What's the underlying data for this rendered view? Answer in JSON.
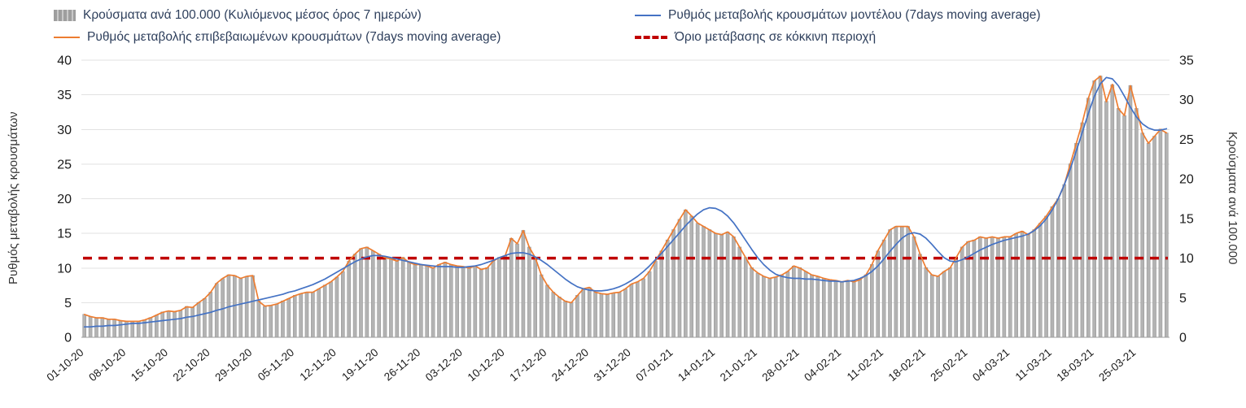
{
  "chart_data": {
    "type": "bar",
    "title": "",
    "legend_position": "top",
    "grid": true,
    "x": {
      "tick_labels": [
        "01-10-20",
        "08-10-20",
        "15-10-20",
        "22-10-20",
        "29-10-20",
        "05-11-20",
        "12-11-20",
        "19-11-20",
        "26-11-20",
        "03-12-20",
        "10-12-20",
        "17-12-20",
        "24-12-20",
        "31-12-20",
        "07-01-21",
        "14-01-21",
        "21-01-21",
        "28-01-21",
        "04-02-21",
        "11-02-21",
        "18-02-21",
        "25-02-21",
        "04-03-21",
        "11-03-21",
        "18-03-21",
        "25-03-21"
      ],
      "points_per_tick": 7,
      "n_points": 181
    },
    "axes": {
      "left": {
        "label": "Ρυθμός μεταβολής κρουσμάτων",
        "min": 0,
        "max": 40,
        "ticks": [
          0,
          5,
          10,
          15,
          20,
          25,
          30,
          35,
          40
        ]
      },
      "right": {
        "label": "Κρούσματα ανά 100.000",
        "min": 0,
        "max": 35,
        "ticks": [
          0,
          5,
          10,
          15,
          20,
          25,
          30,
          35
        ]
      }
    },
    "colors": {
      "bar": "#b3b3b3",
      "bar_edge": "#8f8f8f",
      "blue": "#4472c4",
      "orange": "#ed7d31",
      "red": "#c00000",
      "grid": "#e2e2e2",
      "axis": "#9e9e9e",
      "tick_text": "#1a1a1a"
    },
    "series": [
      {
        "name": "Κρούσματα ανά 100.000 (Κυλιόμενος μέσος όρος 7 ημερών)",
        "type": "bar",
        "axis": "right",
        "color": "#b3b3b3",
        "values": [
          2.9,
          2.6,
          2.5,
          2.5,
          2.3,
          2.3,
          2.1,
          2.0,
          2.0,
          2.0,
          2.2,
          2.5,
          2.8,
          3.2,
          3.3,
          3.2,
          3.4,
          3.9,
          3.8,
          4.4,
          4.9,
          5.7,
          6.8,
          7.4,
          7.9,
          7.8,
          7.4,
          7.7,
          7.8,
          4.6,
          3.9,
          4.0,
          4.2,
          4.6,
          4.9,
          5.3,
          5.5,
          5.7,
          5.7,
          6.1,
          6.6,
          7.0,
          7.6,
          8.3,
          9.6,
          10.5,
          11.2,
          11.4,
          10.9,
          10.5,
          10.1,
          9.9,
          9.6,
          10.1,
          9.5,
          9.2,
          9.2,
          9.0,
          8.8,
          9.2,
          9.5,
          9.2,
          9.0,
          8.9,
          8.8,
          9.0,
          8.6,
          8.8,
          9.6,
          10.1,
          10.3,
          12.5,
          11.8,
          13.5,
          11.4,
          10.1,
          7.9,
          6.6,
          5.7,
          5.1,
          4.6,
          4.4,
          5.3,
          6.1,
          6.3,
          5.7,
          5.5,
          5.4,
          5.6,
          5.7,
          6.1,
          6.7,
          7.0,
          7.4,
          8.3,
          9.6,
          10.9,
          12.3,
          13.6,
          14.9,
          16.1,
          15.3,
          14.4,
          14.0,
          13.6,
          13.1,
          13.0,
          13.3,
          12.7,
          11.4,
          10.1,
          8.8,
          8.1,
          7.7,
          7.4,
          7.6,
          7.9,
          8.3,
          9.0,
          8.8,
          8.3,
          7.9,
          7.7,
          7.4,
          7.3,
          7.2,
          7.0,
          7.2,
          7.0,
          7.3,
          7.9,
          9.2,
          10.9,
          12.3,
          13.6,
          14.0,
          14.0,
          14.0,
          12.7,
          10.5,
          8.8,
          7.9,
          7.7,
          8.3,
          8.8,
          10.1,
          11.4,
          12.1,
          12.3,
          12.7,
          12.5,
          12.7,
          12.5,
          12.7,
          12.7,
          13.1,
          13.4,
          13.0,
          13.6,
          14.4,
          15.3,
          16.5,
          17.5,
          19.3,
          21.9,
          24.5,
          27.1,
          30.2,
          32.4,
          33.0,
          29.8,
          31.9,
          28.9,
          28.0,
          31.8,
          28.9,
          25.8,
          24.5,
          25.4,
          26.3,
          25.8
        ]
      },
      {
        "name": "Ρυθμός μεταβολής επιβεβαιωμένων κρουσμάτων (7days moving average)",
        "type": "line",
        "axis": "left",
        "color": "#ed7d31",
        "values": [
          3.3,
          3.0,
          2.8,
          2.8,
          2.6,
          2.6,
          2.4,
          2.3,
          2.3,
          2.3,
          2.5,
          2.8,
          3.2,
          3.6,
          3.8,
          3.7,
          3.9,
          4.4,
          4.3,
          5.0,
          5.6,
          6.5,
          7.8,
          8.5,
          9.0,
          8.9,
          8.5,
          8.8,
          8.9,
          5.2,
          4.5,
          4.6,
          4.8,
          5.2,
          5.6,
          6.0,
          6.3,
          6.5,
          6.5,
          7.0,
          7.5,
          8.0,
          8.7,
          9.5,
          11.0,
          12.0,
          12.8,
          13.0,
          12.5,
          12.0,
          11.5,
          11.3,
          11.0,
          11.5,
          10.8,
          10.5,
          10.5,
          10.3,
          10.0,
          10.5,
          10.8,
          10.5,
          10.3,
          10.2,
          10.0,
          10.3,
          9.8,
          10.0,
          11.0,
          11.5,
          11.8,
          14.3,
          13.5,
          15.4,
          13.0,
          11.5,
          9.0,
          7.5,
          6.5,
          5.8,
          5.2,
          5.0,
          6.0,
          7.0,
          7.2,
          6.5,
          6.3,
          6.2,
          6.4,
          6.5,
          7.0,
          7.7,
          8.0,
          8.5,
          9.5,
          11.0,
          12.5,
          14.0,
          15.5,
          17.0,
          18.4,
          17.5,
          16.5,
          16.0,
          15.5,
          15.0,
          14.8,
          15.2,
          14.5,
          13.0,
          11.5,
          10.0,
          9.3,
          8.8,
          8.5,
          8.7,
          9.0,
          9.5,
          10.3,
          10.0,
          9.5,
          9.0,
          8.8,
          8.5,
          8.3,
          8.2,
          8.0,
          8.2,
          8.0,
          8.3,
          9.0,
          10.5,
          12.5,
          14.0,
          15.5,
          16.0,
          16.0,
          16.0,
          14.5,
          12.0,
          10.0,
          9.0,
          8.8,
          9.5,
          10.0,
          11.5,
          13.0,
          13.8,
          14.0,
          14.5,
          14.3,
          14.5,
          14.3,
          14.5,
          14.5,
          15.0,
          15.3,
          14.8,
          15.5,
          16.5,
          17.5,
          18.8,
          20.0,
          22.0,
          25.0,
          28.0,
          31.0,
          34.5,
          37.0,
          37.7,
          34.0,
          36.5,
          33.0,
          32.0,
          36.3,
          33.0,
          29.5,
          28.0,
          29.0,
          30.0,
          29.5
        ]
      },
      {
        "name": "Ρυθμός μεταβολής κρουσμάτων μοντέλου (7days moving average)",
        "type": "line",
        "axis": "left",
        "color": "#4472c4",
        "values": [
          1.5,
          1.5,
          1.6,
          1.6,
          1.7,
          1.7,
          1.8,
          1.9,
          2.0,
          2.0,
          2.1,
          2.2,
          2.3,
          2.4,
          2.5,
          2.6,
          2.7,
          2.9,
          3.0,
          3.2,
          3.4,
          3.6,
          3.9,
          4.1,
          4.4,
          4.6,
          4.8,
          5.0,
          5.2,
          5.4,
          5.6,
          5.8,
          6.0,
          6.2,
          6.5,
          6.7,
          7.0,
          7.3,
          7.6,
          8.0,
          8.4,
          8.9,
          9.4,
          9.9,
          10.4,
          10.9,
          11.3,
          11.6,
          11.8,
          11.8,
          11.7,
          11.5,
          11.3,
          11.1,
          10.9,
          10.7,
          10.5,
          10.4,
          10.3,
          10.2,
          10.2,
          10.2,
          10.1,
          10.1,
          10.2,
          10.3,
          10.5,
          10.8,
          11.1,
          11.5,
          11.8,
          12.1,
          12.2,
          12.2,
          12.0,
          11.6,
          11.1,
          10.5,
          9.8,
          9.1,
          8.4,
          7.8,
          7.3,
          7.0,
          6.8,
          6.7,
          6.7,
          6.8,
          7.0,
          7.3,
          7.7,
          8.2,
          8.8,
          9.5,
          10.3,
          11.2,
          12.1,
          13.1,
          14.1,
          15.1,
          16.1,
          17.0,
          17.8,
          18.4,
          18.7,
          18.6,
          18.2,
          17.5,
          16.5,
          15.3,
          14.0,
          12.7,
          11.5,
          10.5,
          9.7,
          9.1,
          8.8,
          8.6,
          8.5,
          8.5,
          8.4,
          8.4,
          8.3,
          8.2,
          8.1,
          8.1,
          8.0,
          8.1,
          8.2,
          8.5,
          8.9,
          9.5,
          10.3,
          11.3,
          12.4,
          13.4,
          14.3,
          14.9,
          15.1,
          14.9,
          14.3,
          13.4,
          12.4,
          11.5,
          11.0,
          10.9,
          11.2,
          11.6,
          12.1,
          12.6,
          13.0,
          13.4,
          13.7,
          14.0,
          14.2,
          14.4,
          14.6,
          14.9,
          15.4,
          16.1,
          17.1,
          18.4,
          20.0,
          22.0,
          24.3,
          26.9,
          29.6,
          32.3,
          34.8,
          36.6,
          37.5,
          37.3,
          36.3,
          34.8,
          33.2,
          31.8,
          30.8,
          30.2,
          29.9,
          29.9,
          30.1
        ]
      },
      {
        "name": "Όριο μετάβασης σε κόκκινη περιοχή",
        "type": "threshold",
        "axis": "right",
        "color": "#c00000",
        "value": 10,
        "style": "dashed"
      }
    ]
  }
}
